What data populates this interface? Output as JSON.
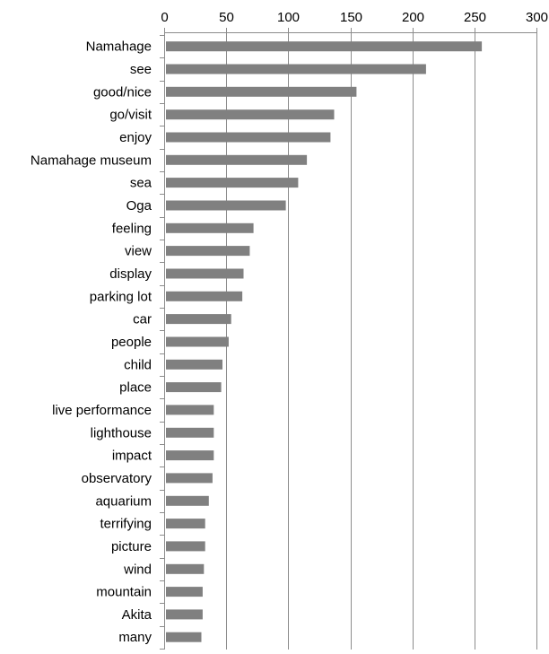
{
  "chart_data": {
    "type": "bar",
    "orientation": "horizontal",
    "title": "",
    "xlabel": "",
    "ylabel": "",
    "xlim": [
      0,
      300
    ],
    "x_ticks": [
      0,
      50,
      100,
      150,
      200,
      250,
      300
    ],
    "x_axis_position": "top",
    "grid": true,
    "bar_color": "#808080",
    "grid_color": "#8c8c8c",
    "categories": [
      "Namahage",
      "see",
      "good/nice",
      "go/visit",
      "enjoy",
      "Namahage museum",
      "sea",
      "Oga",
      "feeling",
      "view",
      "display",
      "parking lot",
      "car",
      "people",
      "child",
      "place",
      "live performance",
      "lighthouse",
      "impact",
      "observatory",
      "aquarium",
      "terrifying",
      "picture",
      "wind",
      "mountain",
      "Akita",
      "many"
    ],
    "values": [
      256,
      211,
      155,
      137,
      134,
      115,
      108,
      98,
      72,
      69,
      64,
      63,
      54,
      52,
      47,
      46,
      40,
      40,
      40,
      39,
      36,
      33,
      33,
      32,
      31,
      31,
      30
    ]
  }
}
